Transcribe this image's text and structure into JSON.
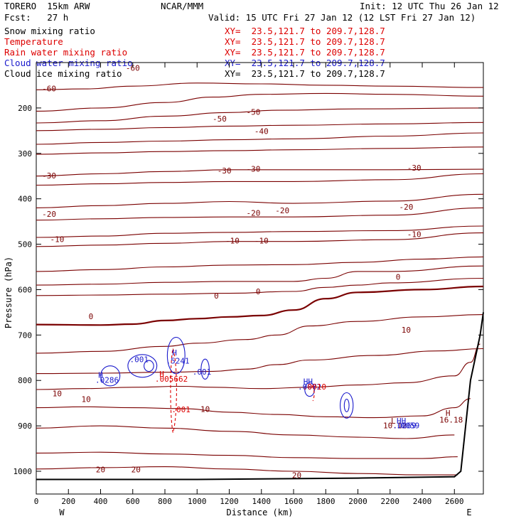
{
  "header": {
    "model": "TORERO  15km ARW",
    "org": "NCAR/MMM",
    "init": "Init: 12 UTC Thu 26 Jan 12",
    "fcst": "Fcst:   27 h",
    "valid": "Valid: 15 UTC Fri 27 Jan 12 (12 LST Fri 27 Jan 12)"
  },
  "fields": [
    {
      "label": "Snow mixing ratio",
      "xy": "XY=  23.5,121.7 to 209.7,128.7",
      "color": "#000000"
    },
    {
      "label": "Temperature",
      "xy": "XY=  23.5,121.7 to 209.7,128.7",
      "color": "#dd0000"
    },
    {
      "label": "Rain water mixing ratio",
      "xy": "XY=  23.5,121.7 to 209.7,128.7",
      "color": "#dd0000"
    },
    {
      "label": "Cloud water mixing ratio",
      "xy": "XY=  23.5,121.7 to 209.7,128.7",
      "color": "#1a1acc"
    },
    {
      "label": "Cloud ice mixing ratio",
      "xy": "XY=  23.5,121.7 to 209.7,128.7",
      "color": "#000000"
    }
  ],
  "chart_data": {
    "type": "contour cross-section",
    "xlabel": "Distance (km)",
    "ylabel": "Pressure (hPa)",
    "xlim": [
      0,
      2780
    ],
    "ylim": [
      1050,
      100
    ],
    "x_ticks": [
      0,
      200,
      400,
      600,
      800,
      1000,
      1200,
      1400,
      1600,
      1800,
      2000,
      2200,
      2400,
      2600
    ],
    "x_tick_labels": [
      "0",
      "200",
      "400",
      "600",
      "800",
      "1000",
      "1200",
      "1400",
      "1600",
      "1800",
      "2000",
      "2200",
      "2400",
      "2600"
    ],
    "y_ticks": [
      200,
      300,
      400,
      500,
      600,
      700,
      800,
      900,
      1000
    ],
    "y_tick_labels": [
      "200",
      "300",
      "400",
      "500",
      "600",
      "700",
      "800",
      "900",
      "1000"
    ],
    "x_end_labels": {
      "left": "W",
      "right": "E"
    },
    "temperature_contours": [
      {
        "level": "-60",
        "points": [
          [
            0,
            160
          ],
          [
            300,
            158
          ],
          [
            600,
            152
          ],
          [
            1000,
            145
          ],
          [
            1400,
            147
          ],
          [
            1800,
            150
          ],
          [
            2200,
            152
          ],
          [
            2780,
            155
          ]
        ]
      },
      {
        "level": "-60",
        "points": [
          [
            0,
            207
          ],
          [
            400,
            200
          ],
          [
            800,
            188
          ],
          [
            1100,
            176
          ],
          [
            1400,
            170
          ],
          [
            1800,
            168
          ],
          [
            2200,
            170
          ],
          [
            2780,
            174
          ]
        ]
      },
      {
        "level": "-50",
        "points": [
          [
            0,
            233
          ],
          [
            400,
            228
          ],
          [
            800,
            218
          ],
          [
            1200,
            210
          ],
          [
            1500,
            205
          ],
          [
            2000,
            202
          ],
          [
            2780,
            200
          ]
        ]
      },
      {
        "level": "-50",
        "points": [
          [
            0,
            250
          ],
          [
            400,
            247
          ],
          [
            800,
            243
          ],
          [
            1200,
            240
          ],
          [
            1600,
            238
          ],
          [
            2200,
            235
          ],
          [
            2780,
            232
          ]
        ]
      },
      {
        "level": "-40",
        "points": [
          [
            0,
            280
          ],
          [
            400,
            276
          ],
          [
            800,
            273
          ],
          [
            1200,
            270
          ],
          [
            1600,
            268
          ],
          [
            2200,
            262
          ],
          [
            2780,
            255
          ]
        ]
      },
      {
        "level": "-40",
        "points": [
          [
            0,
            302
          ],
          [
            400,
            299
          ],
          [
            800,
            296
          ],
          [
            1200,
            294
          ],
          [
            1600,
            292
          ],
          [
            2200,
            289
          ],
          [
            2780,
            286
          ]
        ]
      },
      {
        "level": "-30",
        "points": [
          [
            0,
            350
          ],
          [
            400,
            345
          ],
          [
            800,
            340
          ],
          [
            1200,
            336
          ],
          [
            1600,
            336
          ],
          [
            2200,
            336
          ],
          [
            2780,
            335
          ]
        ]
      },
      {
        "level": "-30",
        "points": [
          [
            0,
            370
          ],
          [
            400,
            367
          ],
          [
            800,
            364
          ],
          [
            1200,
            362
          ],
          [
            1600,
            362
          ],
          [
            2200,
            358
          ],
          [
            2780,
            345
          ]
        ]
      },
      {
        "level": "-20",
        "points": [
          [
            0,
            420
          ],
          [
            400,
            415
          ],
          [
            800,
            410
          ],
          [
            1200,
            406
          ],
          [
            1600,
            410
          ],
          [
            2200,
            405
          ],
          [
            2780,
            390
          ]
        ]
      },
      {
        "level": "-20",
        "points": [
          [
            0,
            447
          ],
          [
            400,
            444
          ],
          [
            800,
            441
          ],
          [
            1200,
            440
          ],
          [
            1600,
            440
          ],
          [
            2200,
            436
          ],
          [
            2780,
            420
          ]
        ]
      },
      {
        "level": "-10",
        "points": [
          [
            0,
            485
          ],
          [
            400,
            482
          ],
          [
            800,
            476
          ],
          [
            1200,
            474
          ],
          [
            1600,
            472
          ],
          [
            2200,
            470
          ],
          [
            2780,
            460
          ]
        ]
      },
      {
        "level": "-10",
        "points": [
          [
            0,
            505
          ],
          [
            400,
            502
          ],
          [
            800,
            498
          ],
          [
            1200,
            494
          ],
          [
            1600,
            494
          ],
          [
            2200,
            490
          ],
          [
            2780,
            475
          ]
        ]
      },
      {
        "level": "-10",
        "points": [
          [
            0,
            560
          ],
          [
            400,
            556
          ],
          [
            800,
            550
          ],
          [
            1200,
            546
          ],
          [
            1600,
            545
          ],
          [
            2000,
            540
          ],
          [
            2400,
            533
          ],
          [
            2780,
            528
          ]
        ]
      },
      {
        "level": "0",
        "points": [
          [
            0,
            590
          ],
          [
            400,
            588
          ],
          [
            800,
            584
          ],
          [
            1200,
            582
          ],
          [
            1600,
            582
          ],
          [
            1800,
            575
          ],
          [
            2000,
            560
          ],
          [
            2200,
            560
          ],
          [
            2780,
            548
          ]
        ]
      },
      {
        "level": "0",
        "points": [
          [
            0,
            613
          ],
          [
            400,
            612
          ],
          [
            800,
            610
          ],
          [
            1200,
            608
          ],
          [
            1600,
            604
          ],
          [
            1800,
            595
          ],
          [
            2000,
            590
          ],
          [
            2200,
            585
          ],
          [
            2780,
            575
          ]
        ]
      },
      {
        "level": "0",
        "points": [
          [
            0,
            677
          ],
          [
            400,
            678
          ],
          [
            600,
            676
          ],
          [
            800,
            668
          ],
          [
            1000,
            664
          ],
          [
            1200,
            660
          ],
          [
            1400,
            657
          ],
          [
            1600,
            645
          ],
          [
            1800,
            620
          ],
          [
            2000,
            606
          ],
          [
            2400,
            600
          ],
          [
            2780,
            593
          ]
        ]
      },
      {
        "level": "10",
        "points": [
          [
            0,
            740
          ],
          [
            400,
            736
          ],
          [
            800,
            725
          ],
          [
            1000,
            718
          ],
          [
            1300,
            710
          ],
          [
            1500,
            700
          ],
          [
            1700,
            680
          ],
          [
            2000,
            670
          ],
          [
            2400,
            660
          ],
          [
            2780,
            655
          ]
        ]
      },
      {
        "level": "10",
        "points": [
          [
            0,
            785
          ],
          [
            400,
            784
          ],
          [
            800,
            782
          ],
          [
            1100,
            780
          ],
          [
            1300,
            775
          ],
          [
            1500,
            765
          ],
          [
            1700,
            755
          ],
          [
            2100,
            745
          ],
          [
            2500,
            735
          ],
          [
            2780,
            730
          ]
        ]
      },
      {
        "level": "10",
        "points": [
          [
            0,
            820
          ],
          [
            300,
            818
          ],
          [
            600,
            815
          ],
          [
            900,
            813
          ],
          [
            1100,
            815
          ],
          [
            1400,
            818
          ],
          [
            1700,
            815
          ],
          [
            2000,
            810
          ],
          [
            2300,
            805
          ],
          [
            2600,
            790
          ],
          [
            2700,
            760
          ],
          [
            2760,
            720
          ]
        ]
      },
      {
        "level": "10",
        "points": [
          [
            0,
            860
          ],
          [
            300,
            858
          ],
          [
            600,
            860
          ],
          [
            900,
            862
          ],
          [
            1200,
            870
          ],
          [
            1500,
            875
          ],
          [
            1800,
            880
          ],
          [
            2100,
            882
          ],
          [
            2400,
            878
          ],
          [
            2600,
            860
          ],
          [
            2700,
            840
          ]
        ]
      },
      {
        "level": "10",
        "points": [
          [
            0,
            905
          ],
          [
            400,
            900
          ],
          [
            800,
            905
          ],
          [
            1200,
            912
          ],
          [
            1600,
            920
          ],
          [
            2000,
            925
          ],
          [
            2300,
            928
          ],
          [
            2600,
            920
          ]
        ]
      },
      {
        "level": "20",
        "points": [
          [
            0,
            960
          ],
          [
            400,
            958
          ],
          [
            800,
            962
          ],
          [
            1200,
            965
          ],
          [
            1600,
            970
          ],
          [
            2000,
            972
          ],
          [
            2400,
            972
          ],
          [
            2620,
            968
          ]
        ]
      },
      {
        "level": "20",
        "points": [
          [
            0,
            995
          ],
          [
            400,
            992
          ],
          [
            800,
            990
          ],
          [
            1200,
            995
          ],
          [
            1600,
            1000
          ],
          [
            2000,
            1005
          ],
          [
            2400,
            1008
          ],
          [
            2620,
            1008
          ]
        ]
      }
    ],
    "ground_line": [
      [
        0,
        1018
      ],
      [
        1000,
        1018
      ],
      [
        2000,
        1015
      ],
      [
        2600,
        1012
      ],
      [
        2640,
        1000
      ],
      [
        2700,
        800
      ],
      [
        2760,
        700
      ],
      [
        2780,
        650
      ]
    ],
    "annotations": [
      {
        "text": "-60",
        "x": 600,
        "y": 118,
        "color": "#7a0000"
      },
      {
        "text": "-60",
        "x": 80,
        "y": 163,
        "color": "#7a0000"
      },
      {
        "text": "-50",
        "x": 1140,
        "y": 230,
        "color": "#7a0000"
      },
      {
        "text": "-50",
        "x": 1350,
        "y": 215,
        "color": "#7a0000"
      },
      {
        "text": "-40",
        "x": 1400,
        "y": 257,
        "color": "#7a0000"
      },
      {
        "text": "-30",
        "x": 80,
        "y": 355,
        "color": "#7a0000"
      },
      {
        "text": "-30",
        "x": 1170,
        "y": 344,
        "color": "#7a0000"
      },
      {
        "text": "-30",
        "x": 1350,
        "y": 340,
        "color": "#7a0000"
      },
      {
        "text": "-30",
        "x": 2350,
        "y": 338,
        "color": "#7a0000"
      },
      {
        "text": "-20",
        "x": 80,
        "y": 440,
        "color": "#7a0000"
      },
      {
        "text": "-20",
        "x": 1350,
        "y": 437,
        "color": "#7a0000"
      },
      {
        "text": "-20",
        "x": 1530,
        "y": 432,
        "color": "#7a0000"
      },
      {
        "text": "-20",
        "x": 2300,
        "y": 424,
        "color": "#7a0000"
      },
      {
        "text": "-10",
        "x": 130,
        "y": 495,
        "color": "#7a0000"
      },
      {
        "text": "-10",
        "x": 1220,
        "y": 498,
        "color": "#7a0000"
      },
      {
        "text": "-10",
        "x": 1400,
        "y": 498,
        "color": "#7a0000"
      },
      {
        "text": "-10",
        "x": 2350,
        "y": 484,
        "color": "#7a0000"
      },
      {
        "text": "0",
        "x": 2250,
        "y": 578,
        "color": "#7a0000"
      },
      {
        "text": "0",
        "x": 1380,
        "y": 610,
        "color": "#7a0000"
      },
      {
        "text": "0",
        "x": 1120,
        "y": 620,
        "color": "#7a0000"
      },
      {
        "text": "0",
        "x": 340,
        "y": 665,
        "color": "#7a0000"
      },
      {
        "text": "10",
        "x": 2300,
        "y": 695,
        "color": "#7a0000"
      },
      {
        "text": "10",
        "x": 130,
        "y": 835,
        "color": "#7a0000"
      },
      {
        "text": "10",
        "x": 310,
        "y": 847,
        "color": "#7a0000"
      },
      {
        "text": "10",
        "x": 1050,
        "y": 869,
        "color": "#7a0000"
      },
      {
        "text": "20",
        "x": 400,
        "y": 1002,
        "color": "#7a0000"
      },
      {
        "text": "20",
        "x": 620,
        "y": 1002,
        "color": "#7a0000"
      },
      {
        "text": "20",
        "x": 1620,
        "y": 1015,
        "color": "#7a0000"
      },
      {
        "text": "H",
        "x": 400,
        "y": 794,
        "color": "#1a1acc"
      },
      {
        "text": ".0286",
        "x": 440,
        "y": 805,
        "color": "#1a1acc"
      },
      {
        "text": ".001",
        "x": 640,
        "y": 760,
        "color": "#1a1acc"
      },
      {
        "text": "H",
        "x": 860,
        "y": 745,
        "color": "#1a1acc"
      },
      {
        "text": ".5241",
        "x": 880,
        "y": 763,
        "color": "#1a1acc"
      },
      {
        "text": ".001",
        "x": 1030,
        "y": 787,
        "color": "#1a1acc"
      },
      {
        "text": "H",
        "x": 780,
        "y": 792,
        "color": "#dd0000"
      },
      {
        "text": ".005662",
        "x": 840,
        "y": 803,
        "color": "#dd0000"
      },
      {
        "text": ".001",
        "x": 900,
        "y": 870,
        "color": "#dd0000"
      },
      {
        "text": "HH",
        "x": 1690,
        "y": 808,
        "color": "#1a1acc"
      },
      {
        "text": ".0072",
        "x": 1700,
        "y": 820,
        "color": "#1a1acc"
      },
      {
        "text": ".0010",
        "x": 1730,
        "y": 820,
        "color": "#dd0000"
      },
      {
        "text": "L",
        "x": 2220,
        "y": 895,
        "color": "#7a0000"
      },
      {
        "text": "HH",
        "x": 2270,
        "y": 895,
        "color": "#1a1acc"
      },
      {
        "text": "10.12",
        "x": 2230,
        "y": 905,
        "color": "#7a0000"
      },
      {
        "text": ".0069",
        "x": 2290,
        "y": 905,
        "color": "#1a1acc"
      },
      {
        "text": ".0059",
        "x": 2310,
        "y": 905,
        "color": "#1a1acc"
      },
      {
        "text": "H",
        "x": 2560,
        "y": 878,
        "color": "#7a0000"
      },
      {
        "text": "16.18",
        "x": 2580,
        "y": 893,
        "color": "#7a0000"
      }
    ]
  }
}
